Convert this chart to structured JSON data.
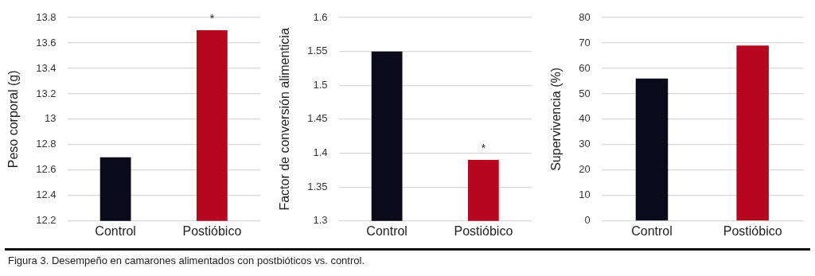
{
  "chart_data": [
    {
      "type": "bar",
      "ylabel": "Peso corporal (g)",
      "categories": [
        "Control",
        "Postióbico"
      ],
      "values": [
        12.7,
        13.7
      ],
      "colors": [
        "#0a0a1a",
        "#b5081f"
      ],
      "ylim": [
        12.2,
        13.8
      ],
      "yticks": [
        12.2,
        12.4,
        12.6,
        12.8,
        13,
        13.2,
        13.4,
        13.6,
        13.8
      ],
      "grid": "y",
      "annotations": [
        "*"
      ]
    },
    {
      "type": "bar",
      "ylabel": "Factor de conversión alimenticia",
      "categories": [
        "Control",
        "Postióbico"
      ],
      "values": [
        1.55,
        1.39
      ],
      "colors": [
        "#0a0a1a",
        "#b5081f"
      ],
      "ylim": [
        1.3,
        1.6
      ],
      "yticks": [
        1.3,
        1.35,
        1.4,
        1.45,
        1.5,
        1.55,
        1.6
      ],
      "grid": "y",
      "annotations": [
        "*"
      ]
    },
    {
      "type": "bar",
      "ylabel": "Supervivencia (%)",
      "categories": [
        "Control",
        "Postióbico"
      ],
      "values": [
        56,
        69
      ],
      "colors": [
        "#0a0a1a",
        "#b5081f"
      ],
      "ylim": [
        0,
        80
      ],
      "yticks": [
        0,
        10,
        20,
        30,
        40,
        50,
        60,
        70,
        80
      ],
      "grid": "y",
      "annotations": [
        "Figura 3. Desempeño en camarones alimentados con postbióticos vs. control."
      ]
    }
  ]
}
